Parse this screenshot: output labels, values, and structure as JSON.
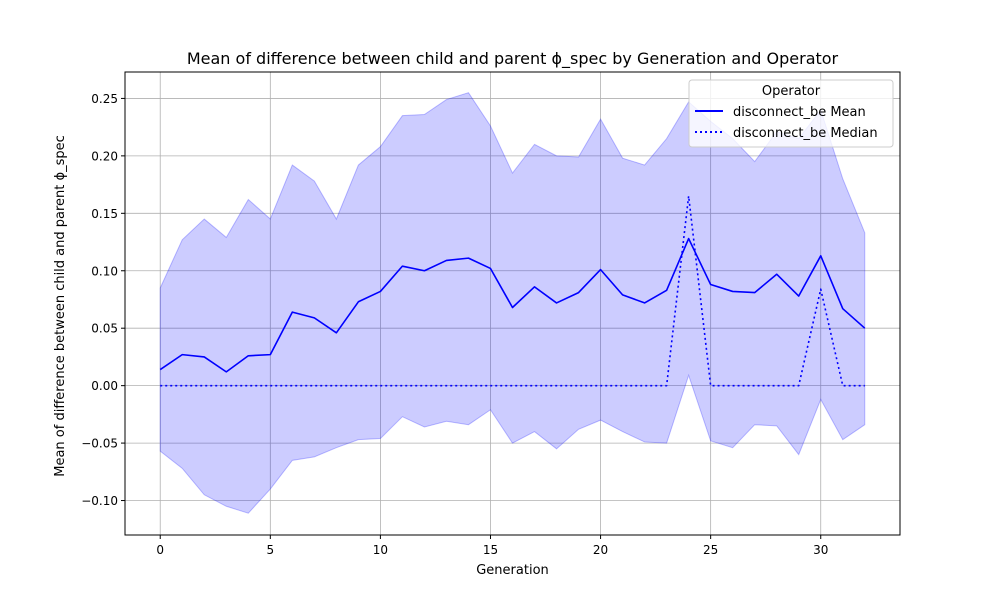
{
  "chart_data": {
    "type": "line",
    "title": "Mean of difference between child and parent ϕ_spec by Generation and Operator",
    "xlabel": "Generation",
    "ylabel": "Mean of difference between child and parent ϕ_spec",
    "xlim": [
      -1.6,
      33.6
    ],
    "ylim": [
      -0.13,
      0.273
    ],
    "xticks": [
      0,
      5,
      10,
      15,
      20,
      25,
      30
    ],
    "yticks": [
      -0.1,
      -0.05,
      0.0,
      0.05,
      0.1,
      0.15,
      0.2,
      0.25
    ],
    "xtick_labels": [
      "0",
      "5",
      "10",
      "15",
      "20",
      "25",
      "30"
    ],
    "ytick_labels": [
      "−0.10",
      "−0.05",
      "0.00",
      "0.05",
      "0.10",
      "0.15",
      "0.20",
      "0.25"
    ],
    "grid": true,
    "legend": {
      "title": "Operator",
      "placement": "top-right"
    },
    "x": [
      0,
      1,
      2,
      3,
      4,
      5,
      6,
      7,
      8,
      9,
      10,
      11,
      12,
      13,
      14,
      15,
      16,
      17,
      18,
      19,
      20,
      21,
      22,
      23,
      24,
      25,
      26,
      27,
      28,
      29,
      30,
      31,
      32
    ],
    "series": [
      {
        "name": "disconnect_be Mean",
        "style": "solid",
        "color": "#0000ff",
        "values": [
          0.014,
          0.027,
          0.025,
          0.012,
          0.026,
          0.027,
          0.064,
          0.059,
          0.046,
          0.073,
          0.082,
          0.104,
          0.1,
          0.109,
          0.111,
          0.102,
          0.068,
          0.086,
          0.072,
          0.081,
          0.101,
          0.079,
          0.072,
          0.083,
          0.128,
          0.088,
          0.082,
          0.081,
          0.097,
          0.078,
          0.113,
          0.067,
          0.05
        ]
      },
      {
        "name": "disconnect_be Median",
        "style": "dotted",
        "color": "#0000ff",
        "values": [
          0,
          0,
          0,
          0,
          0,
          0,
          0,
          0,
          0,
          0,
          0,
          0,
          0,
          0,
          0,
          0,
          0,
          0,
          0,
          0,
          0,
          0,
          0,
          0,
          0.165,
          0,
          0,
          0,
          0,
          0,
          0.084,
          0,
          0
        ]
      }
    ],
    "band": {
      "color": "#0000ff",
      "opacity": 0.2,
      "upper": [
        0.085,
        0.127,
        0.145,
        0.129,
        0.162,
        0.145,
        0.192,
        0.178,
        0.145,
        0.192,
        0.208,
        0.235,
        0.236,
        0.249,
        0.255,
        0.226,
        0.185,
        0.21,
        0.2,
        0.199,
        0.232,
        0.198,
        0.192,
        0.215,
        0.247,
        0.23,
        0.215,
        0.195,
        0.221,
        0.215,
        0.24,
        0.18,
        0.133
      ],
      "lower": [
        -0.057,
        -0.072,
        -0.095,
        -0.105,
        -0.111,
        -0.09,
        -0.065,
        -0.062,
        -0.054,
        -0.047,
        -0.046,
        -0.027,
        -0.036,
        -0.031,
        -0.034,
        -0.021,
        -0.05,
        -0.04,
        -0.055,
        -0.038,
        -0.03,
        -0.04,
        -0.049,
        -0.05,
        0.009,
        -0.048,
        -0.054,
        -0.034,
        -0.035,
        -0.06,
        -0.012,
        -0.047,
        -0.034
      ]
    }
  }
}
